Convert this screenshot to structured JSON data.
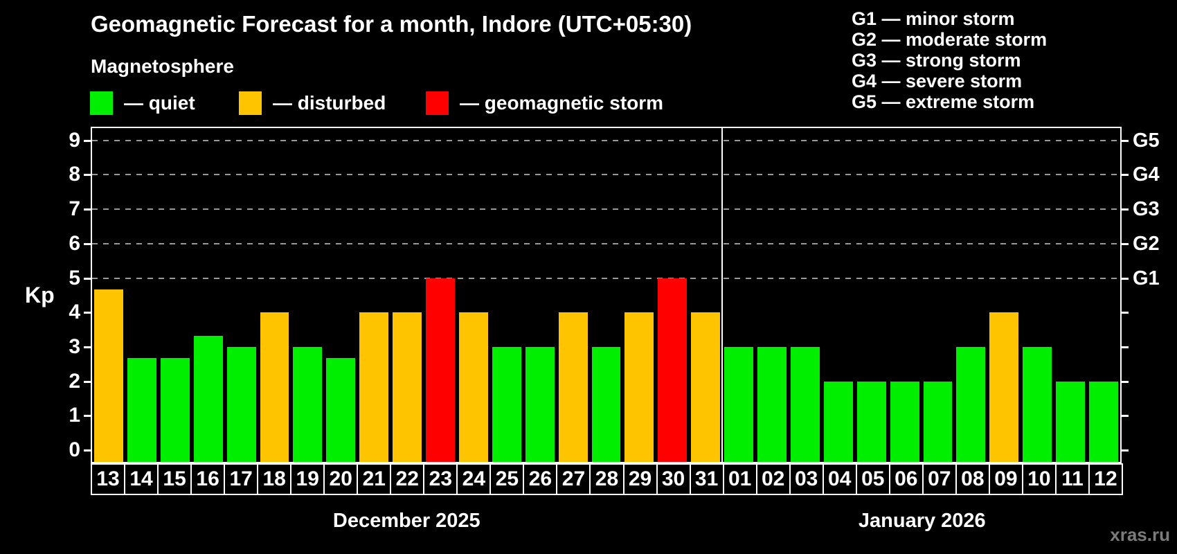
{
  "header": {
    "title": "Geomagnetic Forecast for a month, Indore (UTC+05:30)",
    "subtitle": "Magnetosphere",
    "legend": [
      {
        "color_key": "quiet",
        "label": "— quiet"
      },
      {
        "color_key": "disturbed",
        "label": "— disturbed"
      },
      {
        "color_key": "storm",
        "label": "— geomagnetic storm"
      }
    ],
    "g_scale_legend": [
      "G1 — minor storm",
      "G2 — moderate storm",
      "G3 — strong storm",
      "G4 — severe storm",
      "G5 — extreme storm"
    ]
  },
  "chart_data": {
    "type": "bar",
    "title": "Geomagnetic Forecast for a month, Indore (UTC+05:30)",
    "ylabel": "Kp",
    "ylim": [
      0,
      9.6
    ],
    "yticks": [
      0,
      1,
      2,
      3,
      4,
      5,
      6,
      7,
      8,
      9
    ],
    "gridlines_at": [
      5,
      6,
      7,
      8,
      9
    ],
    "grid": "dashed-horizontal",
    "legend_position": "top-left",
    "right_axis": [
      {
        "kp": 9,
        "label": "G5"
      },
      {
        "kp": 8,
        "label": "G4"
      },
      {
        "kp": 7,
        "label": "G3"
      },
      {
        "kp": 6,
        "label": "G2"
      },
      {
        "kp": 5,
        "label": "G1"
      }
    ],
    "months": [
      {
        "label": "December 2025",
        "days": 19
      },
      {
        "label": "January 2026",
        "days": 12
      }
    ],
    "categories": [
      "13",
      "14",
      "15",
      "16",
      "17",
      "18",
      "19",
      "20",
      "21",
      "22",
      "23",
      "24",
      "25",
      "26",
      "27",
      "28",
      "29",
      "30",
      "31",
      "01",
      "02",
      "03",
      "04",
      "05",
      "06",
      "07",
      "08",
      "09",
      "10",
      "11",
      "12"
    ],
    "values": [
      4.67,
      2.67,
      2.67,
      3.33,
      3,
      4,
      3,
      2.67,
      4,
      4,
      5,
      4,
      3,
      3,
      4,
      3,
      4,
      5,
      4,
      3,
      3,
      3,
      2,
      2,
      2,
      2,
      3,
      4,
      3,
      2,
      2
    ],
    "statuses": [
      "disturbed",
      "quiet",
      "quiet",
      "quiet",
      "quiet",
      "disturbed",
      "quiet",
      "quiet",
      "disturbed",
      "disturbed",
      "storm",
      "disturbed",
      "quiet",
      "quiet",
      "disturbed",
      "quiet",
      "disturbed",
      "storm",
      "disturbed",
      "quiet",
      "quiet",
      "quiet",
      "quiet",
      "quiet",
      "quiet",
      "quiet",
      "quiet",
      "disturbed",
      "quiet",
      "quiet",
      "quiet"
    ],
    "colors": {
      "quiet": "#00EE00",
      "disturbed": "#FFC400",
      "storm": "#FF0000"
    }
  },
  "footer": {
    "watermark": "xras.ru"
  }
}
